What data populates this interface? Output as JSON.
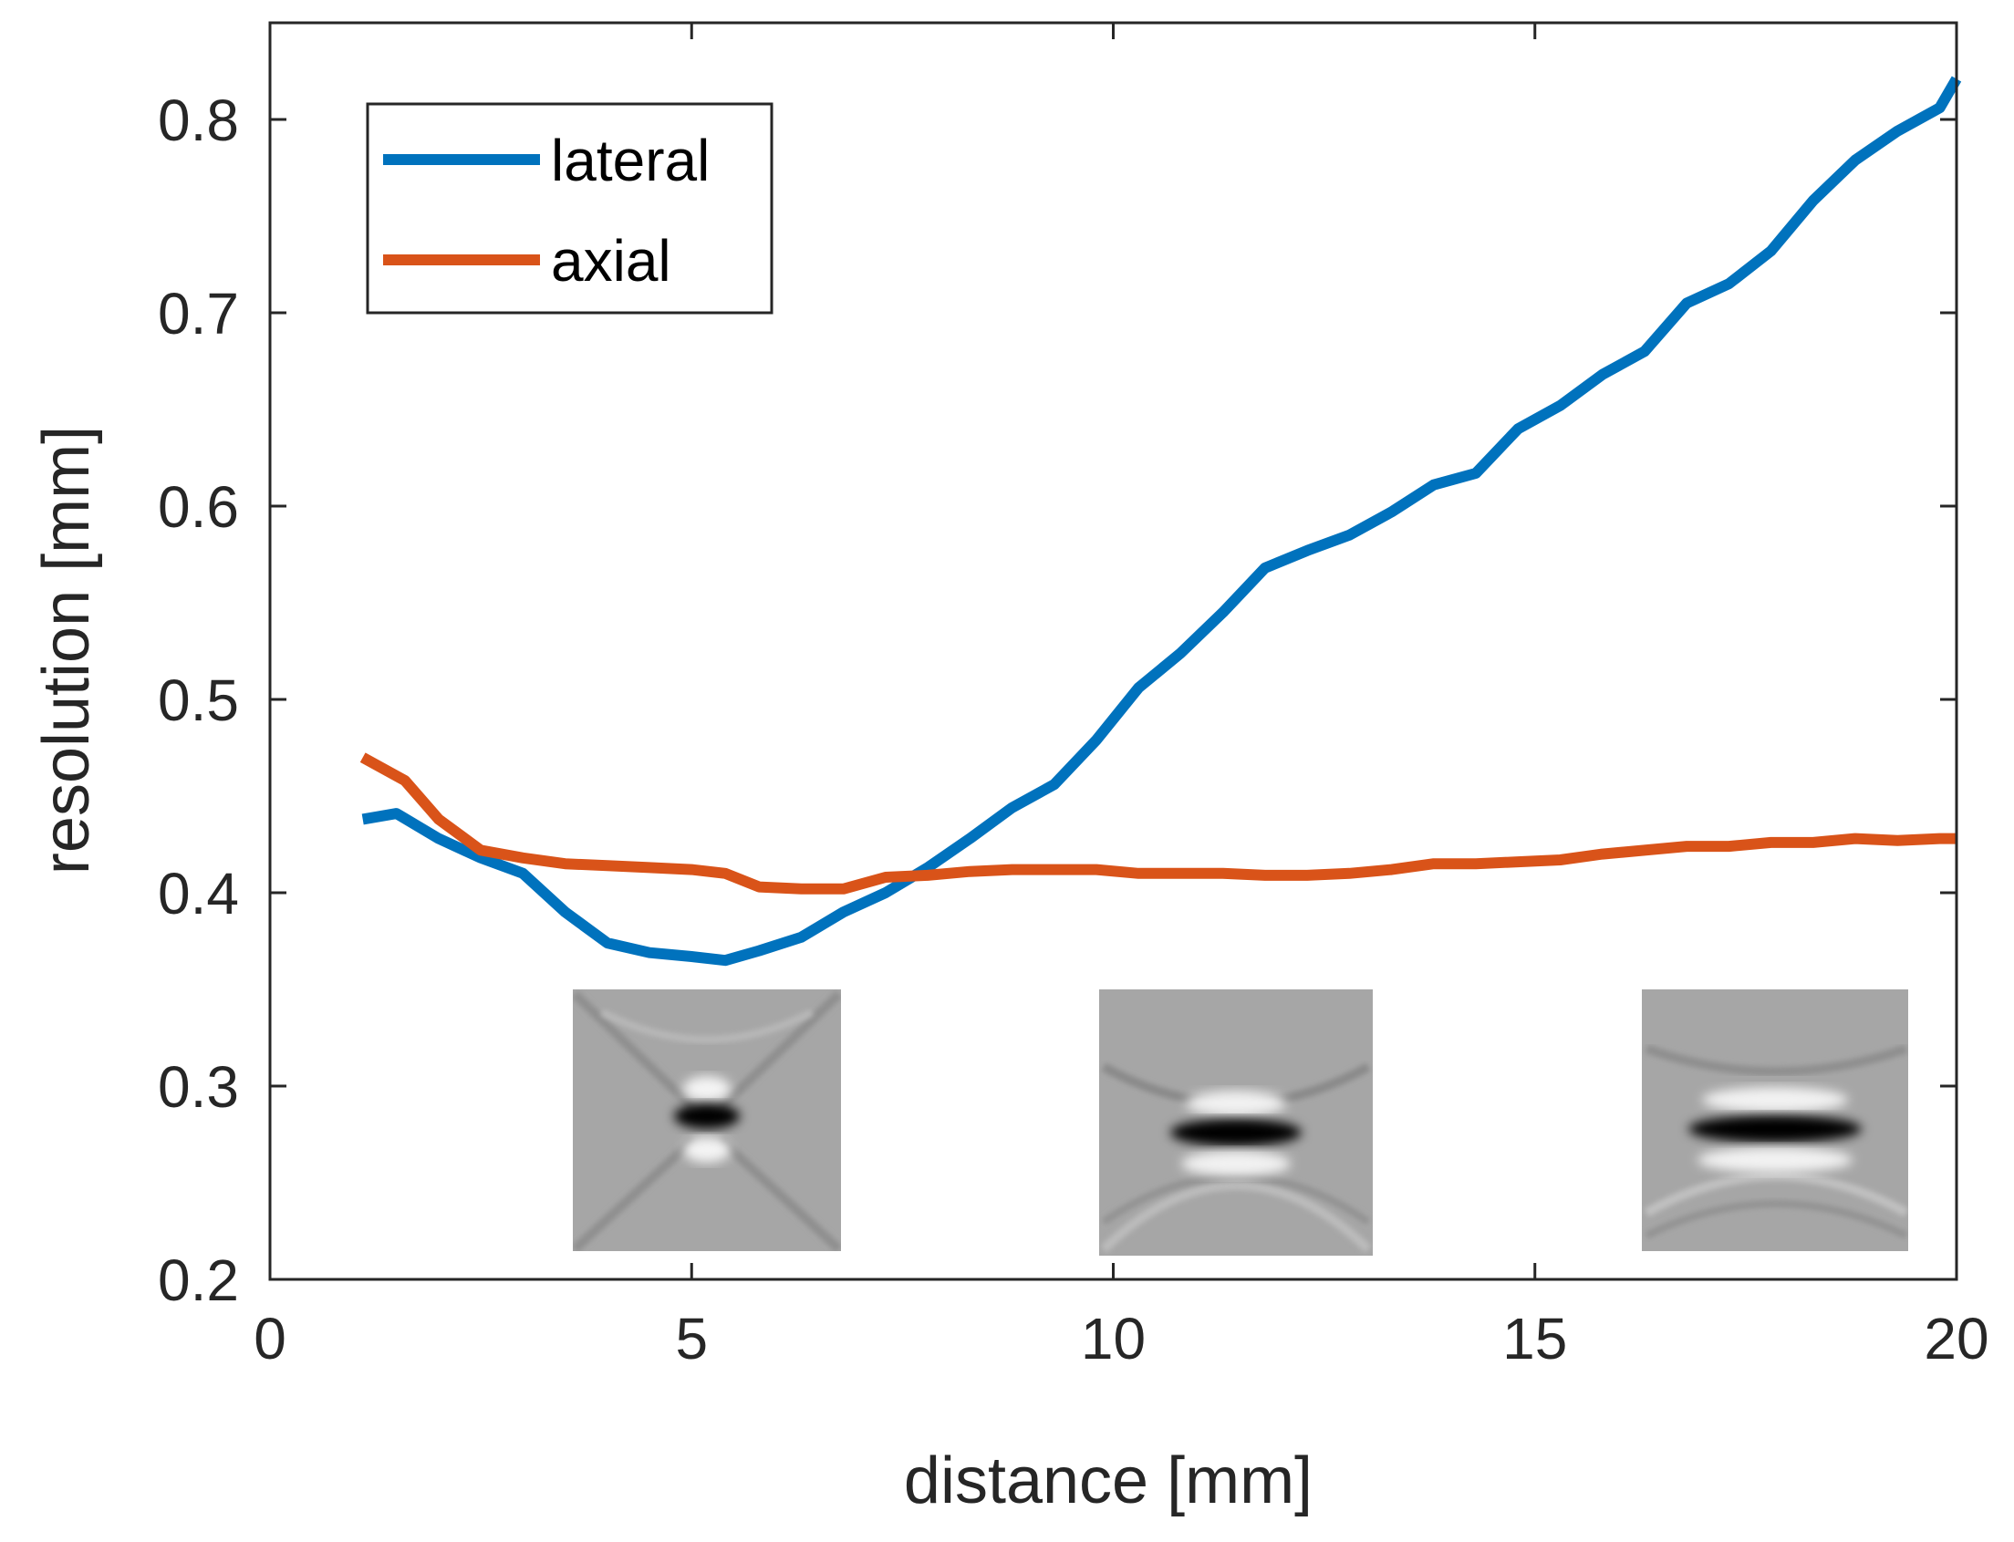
{
  "chart_data": {
    "type": "line",
    "title": "",
    "xlabel": "distance [mm]",
    "ylabel": "resolution [mm]",
    "xlim": [
      0,
      20
    ],
    "ylim": [
      0.2,
      0.85
    ],
    "xticks": [
      0,
      5,
      10,
      15,
      20
    ],
    "xtick_labels": [
      "0",
      "5",
      "10",
      "15",
      "20"
    ],
    "yticks": [
      0.2,
      0.3,
      0.4,
      0.5,
      0.6,
      0.7,
      0.8
    ],
    "ytick_labels": [
      "0.2",
      "0.3",
      "0.4",
      "0.5",
      "0.6",
      "0.7",
      "0.8"
    ],
    "grid": false,
    "legend_position": "top-left",
    "series": [
      {
        "name": "lateral",
        "color": "#0072BD",
        "x": [
          1.1,
          1.5,
          2.0,
          2.5,
          3.0,
          3.5,
          4.0,
          4.5,
          5.0,
          5.4,
          5.8,
          6.3,
          6.8,
          7.3,
          7.8,
          8.3,
          8.8,
          9.3,
          9.8,
          10.3,
          10.8,
          11.3,
          11.8,
          12.3,
          12.8,
          13.3,
          13.8,
          14.3,
          14.8,
          15.3,
          15.8,
          16.3,
          16.8,
          17.3,
          17.8,
          18.3,
          18.8,
          19.3,
          19.8,
          20.0
        ],
        "y": [
          0.438,
          0.441,
          0.428,
          0.418,
          0.41,
          0.39,
          0.374,
          0.369,
          0.367,
          0.365,
          0.37,
          0.377,
          0.39,
          0.4,
          0.413,
          0.428,
          0.444,
          0.456,
          0.479,
          0.506,
          0.524,
          0.545,
          0.568,
          0.577,
          0.585,
          0.597,
          0.611,
          0.617,
          0.64,
          0.652,
          0.668,
          0.68,
          0.705,
          0.715,
          0.732,
          0.758,
          0.779,
          0.794,
          0.806,
          0.821
        ]
      },
      {
        "name": "axial",
        "color": "#D95319",
        "x": [
          1.1,
          1.6,
          2.0,
          2.5,
          3.0,
          3.5,
          4.0,
          4.5,
          5.0,
          5.4,
          5.8,
          6.3,
          6.8,
          7.3,
          7.8,
          8.3,
          8.8,
          9.3,
          9.8,
          10.3,
          10.8,
          11.3,
          11.8,
          12.3,
          12.8,
          13.3,
          13.8,
          14.3,
          14.8,
          15.3,
          15.8,
          16.3,
          16.8,
          17.3,
          17.8,
          18.3,
          18.8,
          19.3,
          19.8,
          20.0
        ],
        "y": [
          0.47,
          0.458,
          0.438,
          0.422,
          0.418,
          0.415,
          0.414,
          0.413,
          0.412,
          0.41,
          0.403,
          0.402,
          0.402,
          0.408,
          0.409,
          0.411,
          0.412,
          0.412,
          0.412,
          0.41,
          0.41,
          0.41,
          0.409,
          0.409,
          0.41,
          0.412,
          0.415,
          0.415,
          0.416,
          0.417,
          0.42,
          0.422,
          0.424,
          0.424,
          0.426,
          0.426,
          0.428,
          0.427,
          0.428,
          0.428
        ]
      }
    ],
    "annotations": [
      {
        "type": "psf-image",
        "name": "psf-near",
        "center_x_data": 5.2,
        "depiction": "compact point spread pattern"
      },
      {
        "type": "psf-image",
        "name": "psf-mid",
        "center_x_data": 11.4,
        "depiction": "wider point spread pattern"
      },
      {
        "type": "psf-image",
        "name": "psf-far",
        "center_x_data": 17.8,
        "depiction": "widest point spread pattern"
      }
    ]
  }
}
